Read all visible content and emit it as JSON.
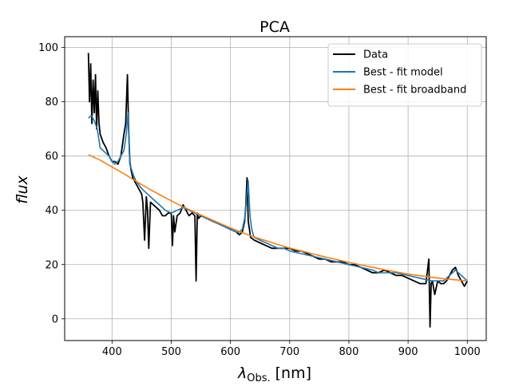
{
  "chart_data": {
    "type": "line",
    "title": "PCA",
    "xlabel_symbol": "λ",
    "xlabel_sub": "Obs.",
    "xlabel_unit": "[nm]",
    "ylabel": "flux",
    "xlim": [
      320,
      1032
    ],
    "ylim": [
      -8,
      104
    ],
    "xticks": [
      400,
      500,
      600,
      700,
      800,
      900,
      1000
    ],
    "yticks": [
      0,
      20,
      40,
      60,
      80,
      100
    ],
    "grid": true,
    "legend_position": "upper-right",
    "series": [
      {
        "name": "Data",
        "color": "#000000",
        "x": [
          360,
          362,
          364,
          366,
          368,
          370,
          372,
          374,
          376,
          378,
          380,
          385,
          390,
          395,
          400,
          405,
          410,
          415,
          420,
          423,
          426,
          428,
          430,
          432,
          435,
          440,
          445,
          450,
          452,
          455,
          458,
          460,
          462,
          465,
          470,
          475,
          480,
          485,
          490,
          495,
          500,
          502,
          504,
          506,
          510,
          515,
          520,
          525,
          530,
          535,
          540,
          542,
          544,
          546,
          550,
          560,
          570,
          580,
          590,
          600,
          610,
          615,
          620,
          622,
          624,
          626,
          628,
          630,
          632,
          634,
          640,
          650,
          660,
          670,
          680,
          690,
          700,
          710,
          720,
          730,
          740,
          750,
          760,
          770,
          780,
          790,
          800,
          810,
          820,
          830,
          840,
          850,
          860,
          870,
          880,
          890,
          900,
          910,
          920,
          930,
          935,
          937,
          939,
          941,
          945,
          950,
          955,
          960,
          965,
          970,
          975,
          980,
          985,
          990,
          995,
          1000
        ],
        "y": [
          98,
          80,
          94,
          72,
          88,
          76,
          90,
          70,
          84,
          72,
          68,
          65,
          63,
          60,
          58,
          58,
          57,
          60,
          68,
          72,
          90,
          70,
          58,
          55,
          52,
          50,
          48,
          46,
          43,
          29,
          45,
          40,
          26,
          43,
          42,
          41,
          40,
          38,
          38,
          39,
          39,
          27,
          38,
          32,
          38,
          39,
          42,
          40,
          38,
          39,
          38,
          14,
          39,
          37,
          38,
          37,
          36,
          35,
          34,
          33,
          32,
          31,
          32,
          34,
          36,
          42,
          52,
          36,
          33,
          30,
          29,
          28,
          27,
          26,
          26,
          26,
          26,
          25,
          25,
          24,
          23,
          22,
          22,
          21,
          21,
          21,
          20,
          20,
          19,
          18,
          17,
          17,
          18,
          17,
          16,
          16,
          15,
          14,
          13,
          13,
          22,
          -3,
          13,
          14,
          9,
          14,
          13,
          13,
          14,
          16,
          18,
          19,
          16,
          14,
          12,
          14
        ]
      },
      {
        "name": "Best - fit model",
        "color": "#1f77b4",
        "x": [
          360,
          365,
          370,
          375,
          380,
          385,
          390,
          395,
          400,
          405,
          410,
          415,
          420,
          424,
          427,
          430,
          433,
          436,
          440,
          450,
          460,
          470,
          480,
          490,
          500,
          510,
          520,
          530,
          540,
          550,
          560,
          570,
          580,
          590,
          600,
          610,
          615,
          620,
          624,
          627,
          630,
          633,
          636,
          640,
          650,
          660,
          670,
          680,
          690,
          700,
          720,
          740,
          760,
          780,
          800,
          820,
          840,
          850,
          860,
          880,
          900,
          920,
          940,
          960,
          980,
          1000
        ],
        "y": [
          74,
          75,
          73,
          70,
          63,
          62,
          61,
          60,
          58,
          57,
          58,
          60,
          62,
          68,
          76,
          57,
          55,
          53,
          51,
          48,
          46,
          44,
          42,
          40,
          39,
          40,
          41,
          40,
          39,
          38,
          37,
          36,
          35,
          34,
          33,
          32,
          32,
          33,
          37,
          44,
          51,
          38,
          33,
          30,
          29,
          28,
          27,
          26,
          26,
          25,
          24,
          23,
          22,
          21,
          20,
          19,
          18,
          17,
          17,
          17,
          16,
          15,
          14,
          14,
          18,
          14
        ]
      },
      {
        "name": "Best - fit broadband",
        "color": "#ff7f0e",
        "x": [
          360,
          380,
          400,
          420,
          440,
          460,
          480,
          500,
          520,
          540,
          560,
          580,
          600,
          620,
          640,
          660,
          680,
          700,
          720,
          740,
          760,
          780,
          800,
          820,
          840,
          860,
          880,
          900,
          920,
          940,
          960,
          980,
          1000
        ],
        "y": [
          60.5,
          58.5,
          56.0,
          53.5,
          50.8,
          48.2,
          45.8,
          43.5,
          41.3,
          39.3,
          37.3,
          35.4,
          33.5,
          31.8,
          30.2,
          28.8,
          27.4,
          26.1,
          25.0,
          23.9,
          22.8,
          21.8,
          20.8,
          19.9,
          19.0,
          18.1,
          17.3,
          16.5,
          15.9,
          15.3,
          14.8,
          14.4,
          14.0
        ]
      }
    ]
  }
}
